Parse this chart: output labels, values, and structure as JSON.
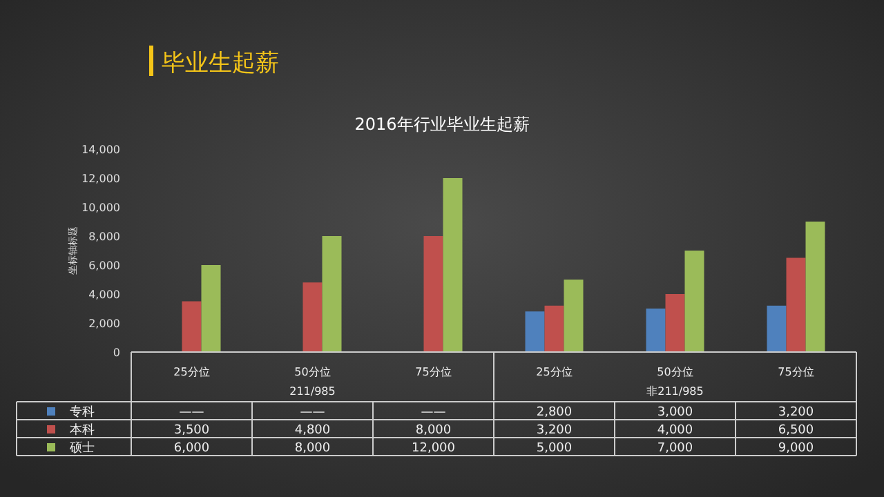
{
  "chart_data": {
    "type": "bar",
    "title": "毕业生起薪",
    "subtitle": "2016年行业毕业生起薪",
    "ylabel": "坐标轴标题",
    "categories": [
      "25分位",
      "50分位",
      "75分位",
      "25分位",
      "50分位",
      "75分位"
    ],
    "annotations": [
      "211/985",
      "非211/985"
    ],
    "series": [
      {
        "name": "专科",
        "color": "#4f81bd",
        "values": [
          null,
          null,
          null,
          2800,
          3000,
          3200
        ],
        "value_labels": [
          "——",
          "——",
          "——",
          "2,800",
          "3,000",
          "3,200"
        ]
      },
      {
        "name": "本科",
        "color": "#c0504d",
        "values": [
          3500,
          4800,
          8000,
          3200,
          4000,
          6500
        ],
        "value_labels": [
          "3,500",
          "4,800",
          "8,000",
          "3,200",
          "4,000",
          "6,500"
        ]
      },
      {
        "name": "硕士",
        "color": "#9bbb59",
        "values": [
          6000,
          8000,
          12000,
          5000,
          7000,
          9000
        ],
        "value_labels": [
          "6,000",
          "8,000",
          "12,000",
          "5,000",
          "7,000",
          "9,000"
        ]
      }
    ],
    "legend": "bottom left",
    "ylim": [
      0,
      14000
    ],
    "yticks": [
      0,
      {
        "value": 2000,
        "label": "2,000"
      },
      {
        "value": 4000,
        "label": "4,000"
      },
      {
        "value": 6000,
        "label": "6,000"
      },
      {
        "value": 8000,
        "label": "8,000"
      },
      {
        "value": 10000,
        "label": "10,000"
      },
      {
        "value": 12000,
        "label": "12,000"
      },
      {
        "value": 14000,
        "label": "14,000"
      }
    ]
  }
}
